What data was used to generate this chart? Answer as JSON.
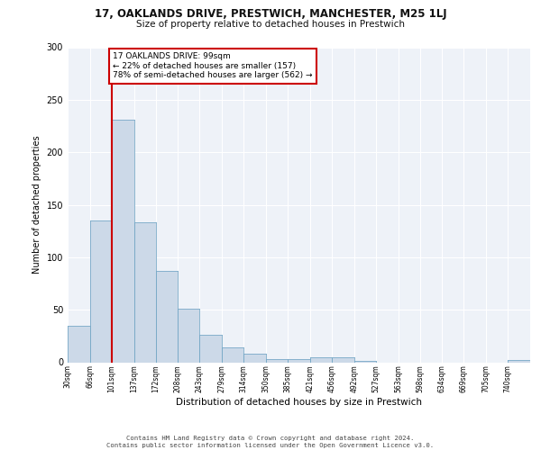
{
  "title": "17, OAKLANDS DRIVE, PRESTWICH, MANCHESTER, M25 1LJ",
  "subtitle": "Size of property relative to detached houses in Prestwich",
  "xlabel": "Distribution of detached houses by size in Prestwich",
  "ylabel": "Number of detached properties",
  "bar_color": "#ccd9e8",
  "bar_edge_color": "#7aaac8",
  "bg_color": "#eef2f8",
  "grid_color": "#ffffff",
  "annotation_box_color": "#cc0000",
  "vline_color": "#cc0000",
  "annotation_line1": "17 OAKLANDS DRIVE: 99sqm",
  "annotation_line2": "← 22% of detached houses are smaller (157)",
  "annotation_line3": "78% of semi-detached houses are larger (562) →",
  "property_size": 99,
  "bin_labels": [
    "30sqm",
    "66sqm",
    "101sqm",
    "137sqm",
    "172sqm",
    "208sqm",
    "243sqm",
    "279sqm",
    "314sqm",
    "350sqm",
    "385sqm",
    "421sqm",
    "456sqm",
    "492sqm",
    "527sqm",
    "563sqm",
    "598sqm",
    "634sqm",
    "669sqm",
    "705sqm",
    "740sqm"
  ],
  "bin_edges": [
    30,
    66,
    101,
    137,
    172,
    208,
    243,
    279,
    314,
    350,
    385,
    421,
    456,
    492,
    527,
    563,
    598,
    634,
    669,
    705,
    740,
    776
  ],
  "bar_heights": [
    35,
    135,
    231,
    133,
    87,
    51,
    26,
    14,
    8,
    3,
    3,
    5,
    5,
    1,
    0,
    0,
    0,
    0,
    0,
    0,
    2
  ],
  "ylim": [
    0,
    300
  ],
  "yticks": [
    0,
    50,
    100,
    150,
    200,
    250,
    300
  ],
  "footer_line1": "Contains HM Land Registry data © Crown copyright and database right 2024.",
  "footer_line2": "Contains public sector information licensed under the Open Government Licence v3.0."
}
